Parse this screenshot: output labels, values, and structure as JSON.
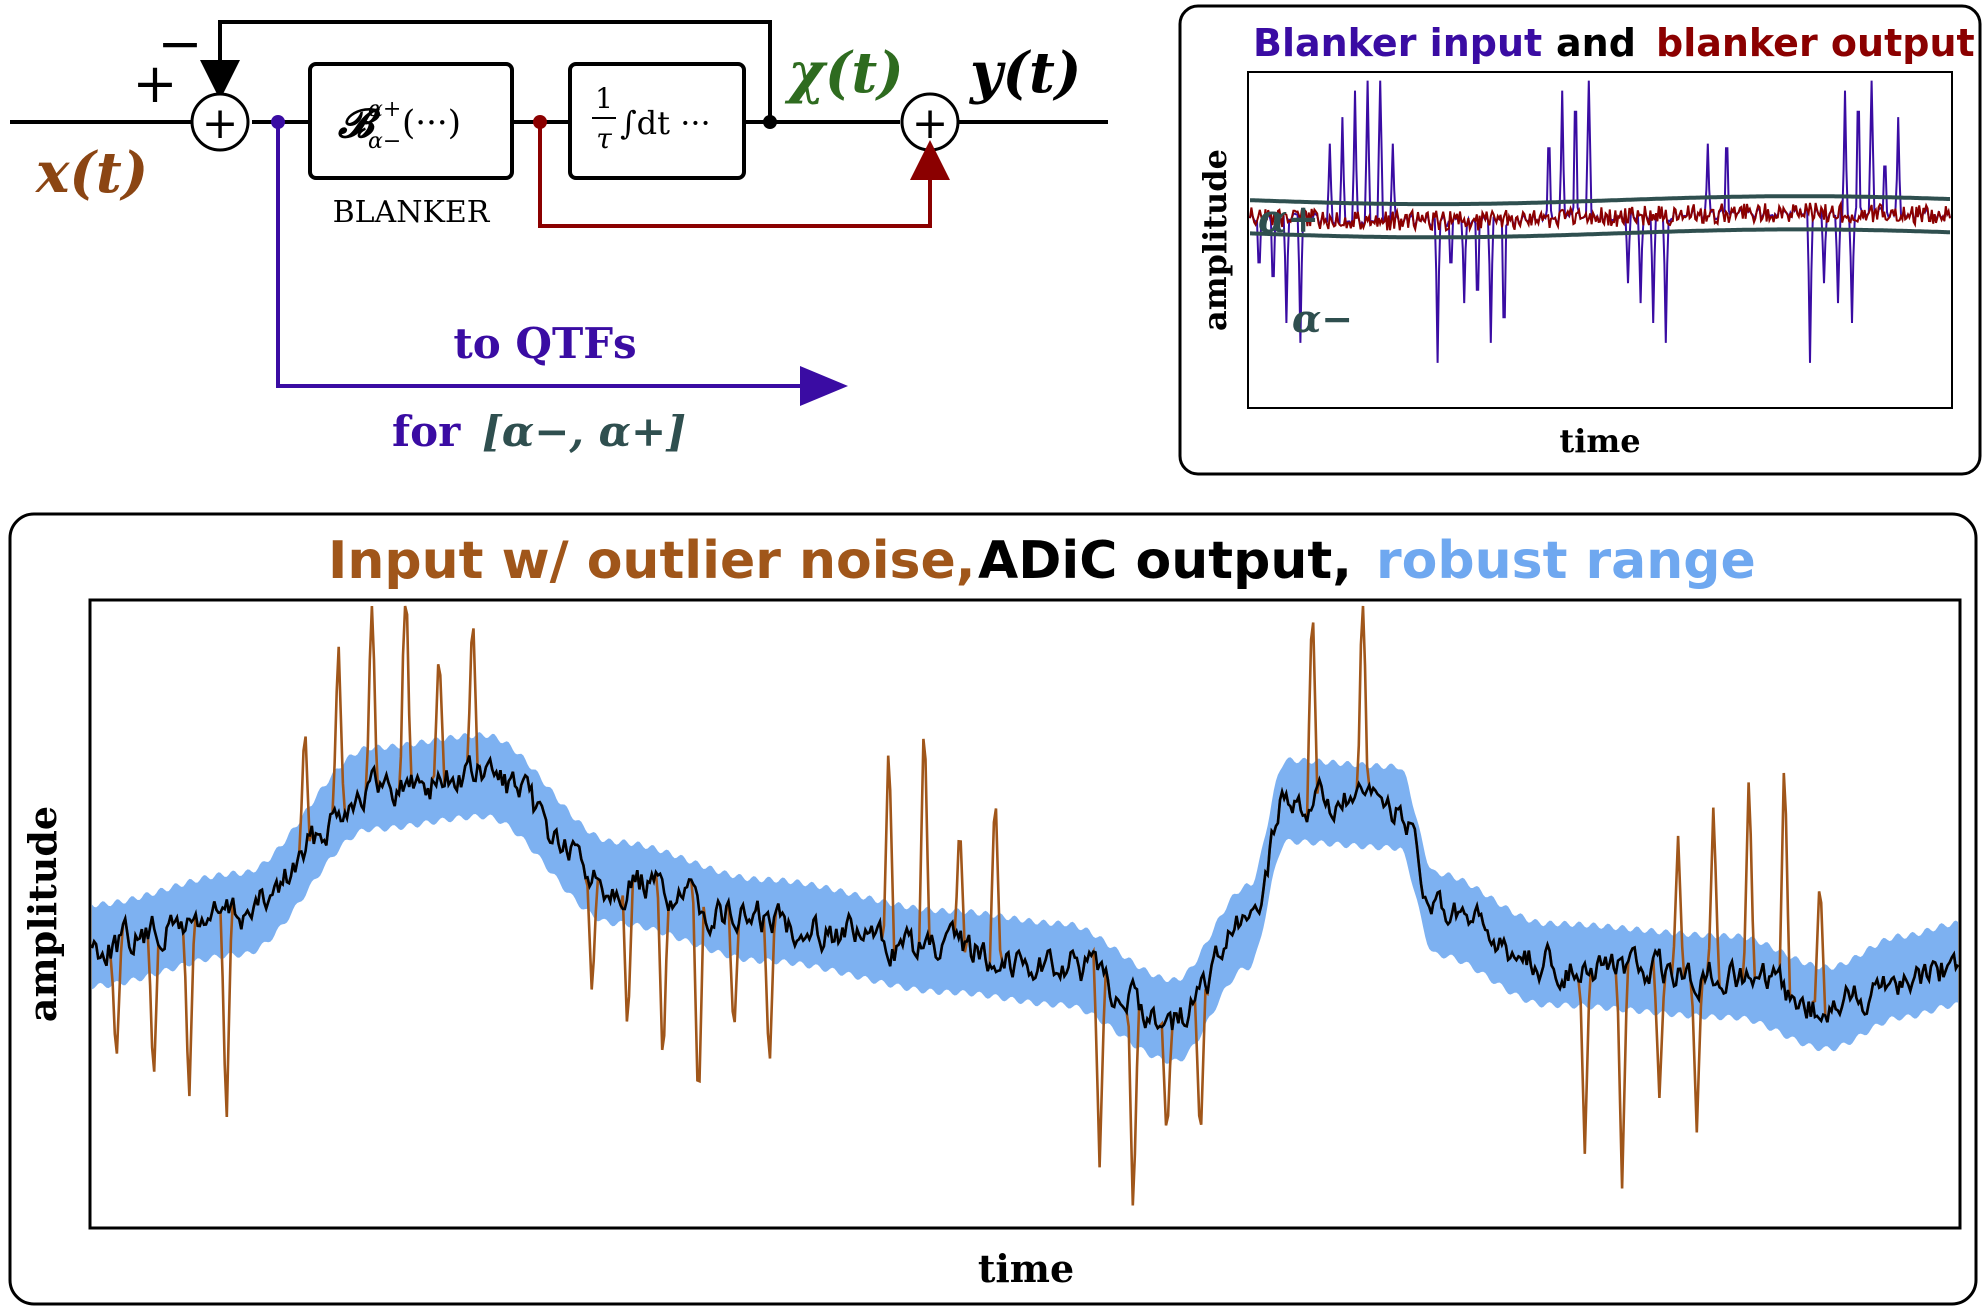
{
  "diagram": {
    "input_label": "x(t)",
    "output_label": "y(t)",
    "chi_label": "χ(t)",
    "plus_sign": "+",
    "minus_sign": "−",
    "sum_symbol": "+",
    "blanker_op": "𝓑",
    "blanker_sup": "α+",
    "blanker_sub": "α−",
    "blanker_args": "(···)",
    "blanker_label": "BLANKER",
    "integrator_num": "1",
    "integrator_den": "τ",
    "integrator_body": "∫dt ···",
    "qtf_line1": "to QTFs",
    "qtf_for": "for",
    "qtf_range": "[α−, α+]",
    "colors": {
      "input": "#8B4513",
      "chi": "#2E6B1F",
      "blanker_path": "#3A0CA3",
      "feedback_red": "#8B0000",
      "alpha": "#2F4F4F"
    }
  },
  "inset": {
    "title_part1": "Blanker input",
    "title_part2": "and",
    "title_part3": "blanker output",
    "ylabel": "amplitude",
    "xlabel": "time",
    "alpha_plus_label": "α+",
    "alpha_minus_label": "α−",
    "colors": {
      "input": "#3A0CA3",
      "output": "#8B0000",
      "threshold": "#2F4F4F"
    }
  },
  "main": {
    "title_part1": "Input w/ outlier noise,",
    "title_part2": "ADiC output,",
    "title_part3": "robust range",
    "ylabel": "amplitude",
    "xlabel": "time",
    "colors": {
      "input": "#A0561A",
      "output": "#000000",
      "range": "#6FA8F0"
    }
  },
  "chart_data": {
    "type": "line",
    "series_names": [
      "Input w/ outlier noise",
      "ADiC output",
      "robust range"
    ],
    "spike_time_fractions_positive": [
      0.114,
      0.132,
      0.15,
      0.168,
      0.186,
      0.204,
      0.427,
      0.446,
      0.465,
      0.484,
      0.654,
      0.681,
      0.85,
      0.869,
      0.888,
      0.907,
      0.926
    ],
    "spike_time_fractions_negative": [
      0.013,
      0.033,
      0.052,
      0.072,
      0.268,
      0.287,
      0.306,
      0.325,
      0.344,
      0.363,
      0.54,
      0.558,
      0.576,
      0.594,
      0.8,
      0.82,
      0.84,
      0.86
    ],
    "xlabel": "time",
    "ylabel": "amplitude"
  }
}
